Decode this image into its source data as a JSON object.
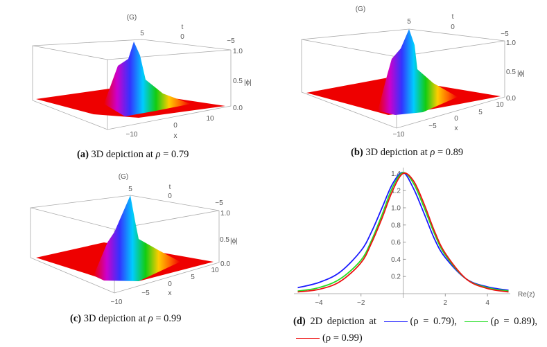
{
  "panels": {
    "a": {
      "plot_label": "(G)",
      "t_label": "t",
      "t_ticks": [
        "5",
        "0",
        "−5"
      ],
      "z_ticks": [
        "1.0",
        "0.5",
        "0.0"
      ],
      "z_label": "|ϕ|",
      "x_label": "x",
      "x_ticks": [
        "10",
        "0",
        "−10"
      ]
    },
    "b": {
      "plot_label": "(G)",
      "t_label": "t",
      "t_ticks": [
        "5",
        "0",
        "−5"
      ],
      "z_ticks": [
        "1.0",
        "0.5",
        "0.0"
      ],
      "z_label": "|ϕ|",
      "x_label": "x",
      "x_ticks": [
        "10",
        "5",
        "0",
        "−5",
        "−10"
      ]
    },
    "c": {
      "plot_label": "(G)",
      "t_label": "t",
      "t_ticks": [
        "5",
        "0",
        "−5"
      ],
      "z_ticks": [
        "1.0",
        "0.5",
        "0.0"
      ],
      "z_label": "|ϕ|",
      "x_label": "x",
      "x_ticks": [
        "10",
        "5",
        "0",
        "−5",
        "−10"
      ]
    }
  },
  "captions": {
    "a": {
      "label": "(a)",
      "text": "3D depiction at",
      "var": "ρ",
      "value": "= 0.79"
    },
    "b": {
      "label": "(b)",
      "text": "3D depiction at",
      "var": "ρ",
      "value": "= 0.89"
    },
    "c": {
      "label": "(c)",
      "text": "3D depiction at",
      "var": "ρ",
      "value": "= 0.99"
    },
    "d": {
      "label": "(d)",
      "text": "2D depiction at",
      "entries": [
        "(ρ = 0.79),",
        "(ρ = 0.89),",
        "(ρ = 0.99)"
      ]
    }
  },
  "chart_data": {
    "type": "line",
    "xlabel": "Re(z)",
    "ylabel": "",
    "xlim": [
      -5,
      5
    ],
    "ylim": [
      0,
      1.45
    ],
    "x_ticks": [
      "−4",
      "−2",
      "2",
      "4"
    ],
    "y_ticks": [
      "0.2",
      "0.4",
      "0.6",
      "0.8",
      "1.0",
      "1.2",
      "1.4"
    ],
    "x": [
      -5,
      -4,
      -3,
      -2,
      -1.5,
      -1,
      -0.5,
      0,
      0.5,
      1,
      1.5,
      2,
      3,
      4,
      5
    ],
    "series": [
      {
        "name": "ρ = 0.79",
        "color": "#1a1aff",
        "values": [
          0.07,
          0.13,
          0.25,
          0.5,
          0.72,
          1.0,
          1.28,
          1.41,
          1.22,
          0.93,
          0.63,
          0.42,
          0.17,
          0.08,
          0.04
        ]
      },
      {
        "name": "ρ = 0.89",
        "color": "#22dd22",
        "values": [
          0.03,
          0.07,
          0.17,
          0.39,
          0.62,
          0.92,
          1.24,
          1.41,
          1.28,
          1.0,
          0.69,
          0.45,
          0.17,
          0.07,
          0.03
        ]
      },
      {
        "name": "ρ = 0.99",
        "color": "#ee1111",
        "values": [
          0.02,
          0.05,
          0.14,
          0.36,
          0.59,
          0.88,
          1.2,
          1.4,
          1.31,
          1.04,
          0.72,
          0.47,
          0.17,
          0.06,
          0.02
        ]
      }
    ]
  }
}
